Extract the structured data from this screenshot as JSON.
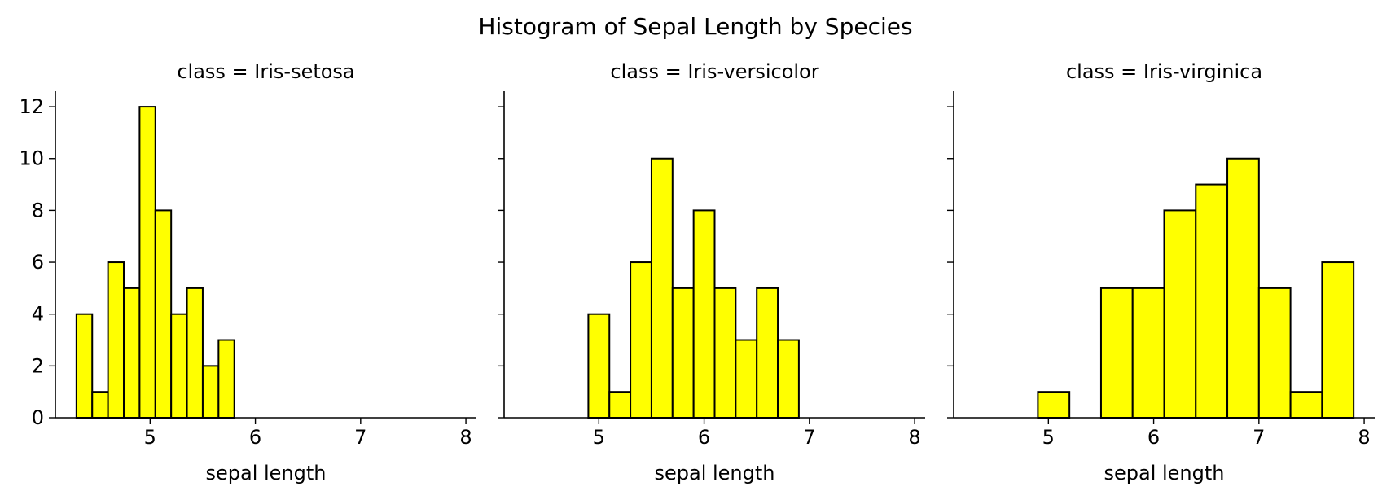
{
  "chart_data": {
    "type": "bar",
    "title": "Histogram of Sepal Length by Species",
    "xlabel": "sepal length",
    "ylabel": "",
    "xlim": [
      4.1,
      8.1
    ],
    "ylim": [
      0,
      12.6
    ],
    "xticks": [
      5,
      6,
      7,
      8
    ],
    "yticks": [
      0,
      2,
      4,
      6,
      8,
      10,
      12
    ],
    "bar_color": "#ffff00",
    "edge_color": "#000000",
    "grid": false,
    "panels": [
      {
        "title": "class = Iris-setosa",
        "bins": [
          {
            "x0": 4.3,
            "x1": 4.45,
            "count": 4
          },
          {
            "x0": 4.45,
            "x1": 4.6,
            "count": 1
          },
          {
            "x0": 4.6,
            "x1": 4.75,
            "count": 6
          },
          {
            "x0": 4.75,
            "x1": 4.9,
            "count": 5
          },
          {
            "x0": 4.9,
            "x1": 5.05,
            "count": 12
          },
          {
            "x0": 5.05,
            "x1": 5.2,
            "count": 8
          },
          {
            "x0": 5.2,
            "x1": 5.35,
            "count": 4
          },
          {
            "x0": 5.35,
            "x1": 5.5,
            "count": 5
          },
          {
            "x0": 5.5,
            "x1": 5.65,
            "count": 2
          },
          {
            "x0": 5.65,
            "x1": 5.8,
            "count": 3
          }
        ]
      },
      {
        "title": "class = Iris-versicolor",
        "bins": [
          {
            "x0": 4.9,
            "x1": 5.1,
            "count": 4
          },
          {
            "x0": 5.1,
            "x1": 5.3,
            "count": 1
          },
          {
            "x0": 5.3,
            "x1": 5.5,
            "count": 6
          },
          {
            "x0": 5.5,
            "x1": 5.7,
            "count": 10
          },
          {
            "x0": 5.7,
            "x1": 5.9,
            "count": 5
          },
          {
            "x0": 5.9,
            "x1": 6.1,
            "count": 8
          },
          {
            "x0": 6.1,
            "x1": 6.3,
            "count": 5
          },
          {
            "x0": 6.3,
            "x1": 6.5,
            "count": 3
          },
          {
            "x0": 6.5,
            "x1": 6.7,
            "count": 5
          },
          {
            "x0": 6.7,
            "x1": 6.9,
            "count": 3
          }
        ]
      },
      {
        "title": "class = Iris-virginica",
        "bins": [
          {
            "x0": 4.9,
            "x1": 5.2,
            "count": 1
          },
          {
            "x0": 5.2,
            "x1": 5.5,
            "count": 0
          },
          {
            "x0": 5.5,
            "x1": 5.8,
            "count": 5
          },
          {
            "x0": 5.8,
            "x1": 6.1,
            "count": 5
          },
          {
            "x0": 6.1,
            "x1": 6.4,
            "count": 8
          },
          {
            "x0": 6.4,
            "x1": 6.7,
            "count": 9
          },
          {
            "x0": 6.7,
            "x1": 7.0,
            "count": 10
          },
          {
            "x0": 7.0,
            "x1": 7.3,
            "count": 5
          },
          {
            "x0": 7.3,
            "x1": 7.6,
            "count": 1
          },
          {
            "x0": 7.6,
            "x1": 7.9,
            "count": 6
          }
        ]
      }
    ]
  }
}
